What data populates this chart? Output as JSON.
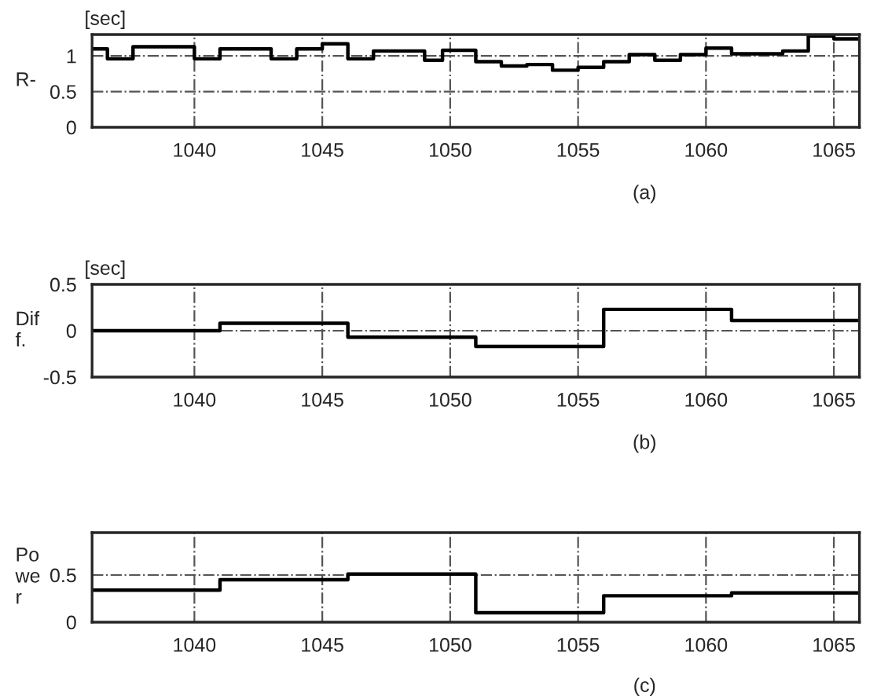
{
  "chart_data": [
    {
      "type": "step",
      "title": "(a)",
      "ylabel": "R-",
      "annotations": [
        "[sec]"
      ],
      "x": [
        1036,
        1036.6,
        1037.6,
        1040,
        1041,
        1043,
        1044,
        1045,
        1046,
        1047,
        1049,
        1049.7,
        1051,
        1052,
        1053,
        1054,
        1055,
        1056,
        1057,
        1058,
        1059,
        1060,
        1061,
        1063,
        1064,
        1065,
        1066
      ],
      "series": [
        {
          "color": "#000000",
          "values": [
            1.1,
            0.96,
            1.13,
            0.96,
            1.1,
            0.96,
            1.1,
            1.17,
            0.96,
            1.07,
            0.94,
            1.08,
            0.92,
            0.86,
            0.88,
            0.8,
            0.84,
            0.92,
            1.02,
            0.94,
            1.02,
            1.11,
            1.03,
            1.07,
            1.28,
            1.24,
            1.24
          ]
        }
      ],
      "xlim": [
        1036,
        1066
      ],
      "ylim": [
        0,
        1.3
      ],
      "xticks": [
        1040,
        1045,
        1050,
        1055,
        1060,
        1065
      ],
      "yticks": [
        0,
        0.5,
        1
      ],
      "grid": true,
      "line_style": "solid"
    },
    {
      "type": "step",
      "title": "(b)",
      "ylabel": "Dif\nf.",
      "annotations": [
        "[sec]"
      ],
      "x": [
        1036,
        1041,
        1046,
        1051,
        1056,
        1061,
        1066
      ],
      "series": [
        {
          "color": "#000000",
          "values": [
            0.0,
            0.08,
            -0.07,
            -0.17,
            0.23,
            0.11,
            0.11
          ]
        }
      ],
      "xlim": [
        1036,
        1066
      ],
      "ylim": [
        -0.5,
        0.5
      ],
      "xticks": [
        1040,
        1045,
        1050,
        1055,
        1060,
        1065
      ],
      "yticks": [
        -0.5,
        0,
        0.5
      ],
      "grid": true,
      "line_style": "solid"
    },
    {
      "type": "step",
      "title": "(c)",
      "ylabel": "Po\nwe\nr",
      "x": [
        1036,
        1041,
        1046,
        1051,
        1056,
        1061,
        1066
      ],
      "series": [
        {
          "color": "#000000",
          "values": [
            0.34,
            0.45,
            0.51,
            0.1,
            0.28,
            0.31,
            0.31
          ]
        }
      ],
      "xlim": [
        1036,
        1066
      ],
      "ylim": [
        0,
        0.95
      ],
      "xticks": [
        1040,
        1045,
        1050,
        1055,
        1060,
        1065
      ],
      "yticks": [
        0,
        0.5
      ],
      "grid": true,
      "line_style": "solid"
    }
  ]
}
